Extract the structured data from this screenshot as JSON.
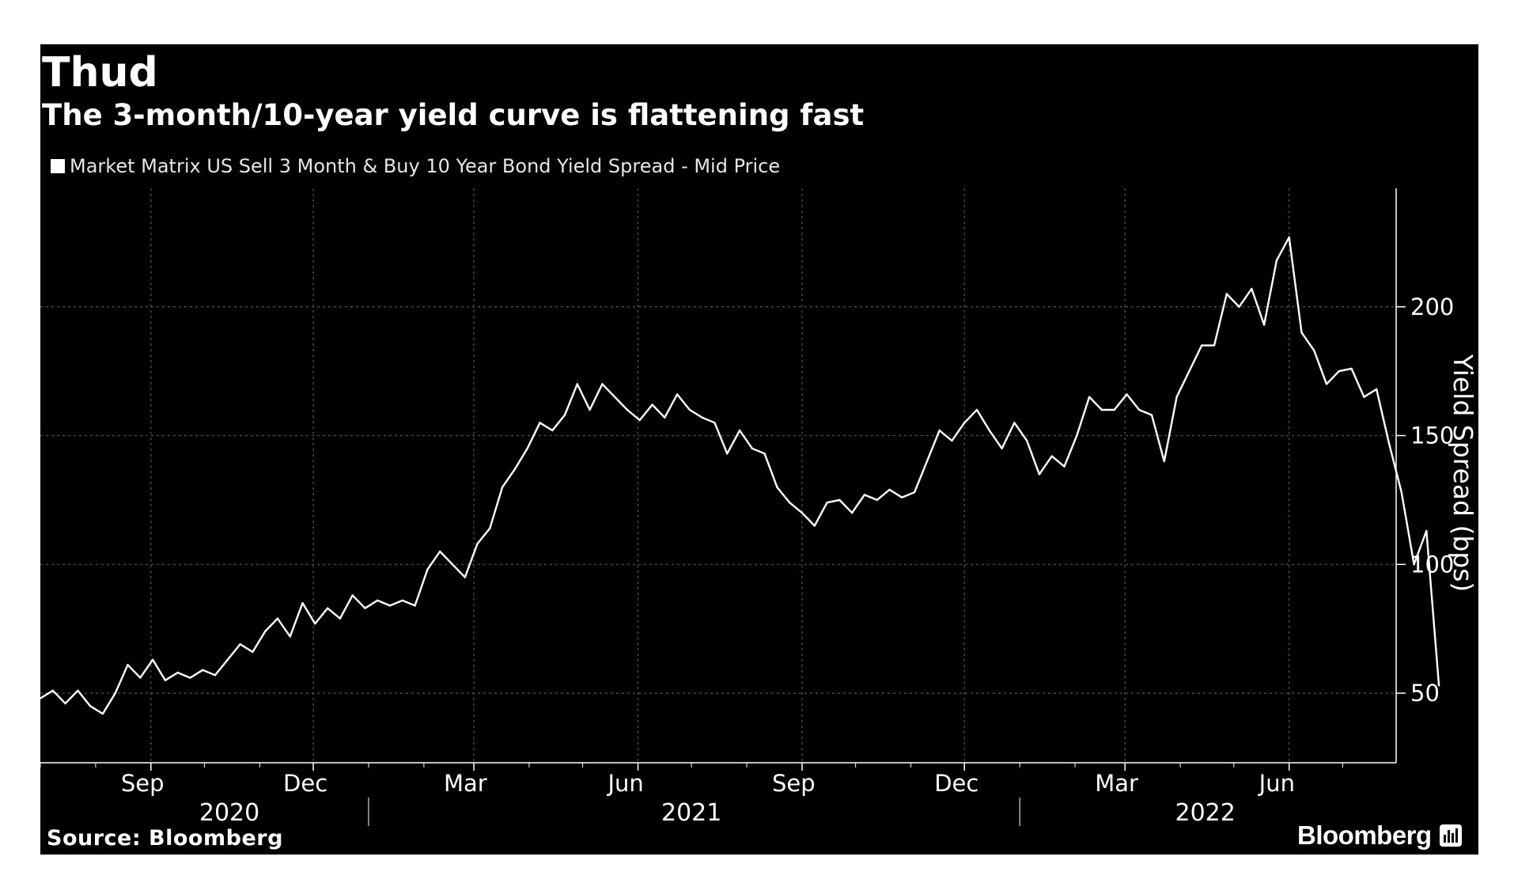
{
  "header": {
    "title": "Thud",
    "subtitle": "The 3-month/10-year yield curve is flattening fast"
  },
  "footer": {
    "source": "Source: Bloomberg",
    "brand": "Bloomberg"
  },
  "colors": {
    "background": "#000000",
    "line": "#ffffff",
    "grid": "#555555"
  },
  "chart_data": {
    "type": "line",
    "title": "Thud",
    "subtitle": "The 3-month/10-year yield curve is flattening fast",
    "legend": [
      "Market Matrix US Sell 3 Month & Buy 10 Year Bond Yield Spread - Mid Price"
    ],
    "ylabel": "Yield Spread (bps)",
    "xlabel": "",
    "ylim": [
      23,
      246
    ],
    "yticks": [
      50,
      100,
      150,
      200
    ],
    "grid": true,
    "x_range": [
      "2020-07-01",
      "2022-07-31"
    ],
    "x_ticks": [
      {
        "date": "2020-09-01",
        "label": "Sep"
      },
      {
        "date": "2020-12-01",
        "label": "Dec"
      },
      {
        "date": "2021-03-01",
        "label": "Mar"
      },
      {
        "date": "2021-06-01",
        "label": "Jun"
      },
      {
        "date": "2021-09-01",
        "label": "Sep"
      },
      {
        "date": "2021-12-01",
        "label": "Dec"
      },
      {
        "date": "2022-03-01",
        "label": "Mar"
      },
      {
        "date": "2022-06-01",
        "label": "Jun"
      }
    ],
    "years": [
      {
        "label": "2020",
        "center": "2020-10-15"
      },
      {
        "label": "2021",
        "center": "2021-07-01"
      },
      {
        "label": "2022",
        "center": "2022-04-15"
      }
    ],
    "year_dividers": [
      "2021-01-01",
      "2022-01-01"
    ],
    "series": [
      {
        "name": "Market Matrix US Sell 3 Month & Buy 10 Year Bond Yield Spread - Mid Price",
        "points": [
          [
            "2020-07-01",
            48
          ],
          [
            "2020-07-08",
            51
          ],
          [
            "2020-07-15",
            46
          ],
          [
            "2020-07-22",
            51
          ],
          [
            "2020-07-29",
            45
          ],
          [
            "2020-08-05",
            42
          ],
          [
            "2020-08-12",
            50
          ],
          [
            "2020-08-19",
            61
          ],
          [
            "2020-08-26",
            56
          ],
          [
            "2020-09-02",
            63
          ],
          [
            "2020-09-09",
            55
          ],
          [
            "2020-09-16",
            58
          ],
          [
            "2020-09-23",
            56
          ],
          [
            "2020-09-30",
            59
          ],
          [
            "2020-10-07",
            57
          ],
          [
            "2020-10-14",
            63
          ],
          [
            "2020-10-21",
            69
          ],
          [
            "2020-10-28",
            66
          ],
          [
            "2020-11-04",
            74
          ],
          [
            "2020-11-11",
            79
          ],
          [
            "2020-11-18",
            72
          ],
          [
            "2020-11-25",
            85
          ],
          [
            "2020-12-02",
            77
          ],
          [
            "2020-12-09",
            83
          ],
          [
            "2020-12-16",
            79
          ],
          [
            "2020-12-23",
            88
          ],
          [
            "2020-12-30",
            83
          ],
          [
            "2021-01-06",
            86
          ],
          [
            "2021-01-13",
            84
          ],
          [
            "2021-01-20",
            86
          ],
          [
            "2021-01-27",
            84
          ],
          [
            "2021-02-03",
            98
          ],
          [
            "2021-02-10",
            105
          ],
          [
            "2021-02-17",
            100
          ],
          [
            "2021-02-24",
            95
          ],
          [
            "2021-03-03",
            108
          ],
          [
            "2021-03-10",
            114
          ],
          [
            "2021-03-17",
            130
          ],
          [
            "2021-03-24",
            137
          ],
          [
            "2021-03-31",
            145
          ],
          [
            "2021-04-07",
            155
          ],
          [
            "2021-04-14",
            152
          ],
          [
            "2021-04-21",
            158
          ],
          [
            "2021-04-28",
            170
          ],
          [
            "2021-05-05",
            160
          ],
          [
            "2021-05-12",
            170
          ],
          [
            "2021-05-19",
            165
          ],
          [
            "2021-05-26",
            160
          ],
          [
            "2021-06-02",
            156
          ],
          [
            "2021-06-09",
            162
          ],
          [
            "2021-06-16",
            157
          ],
          [
            "2021-06-23",
            166
          ],
          [
            "2021-06-30",
            160
          ],
          [
            "2021-07-07",
            157
          ],
          [
            "2021-07-14",
            155
          ],
          [
            "2021-07-21",
            143
          ],
          [
            "2021-07-28",
            152
          ],
          [
            "2021-08-04",
            145
          ],
          [
            "2021-08-11",
            143
          ],
          [
            "2021-08-18",
            130
          ],
          [
            "2021-08-25",
            124
          ],
          [
            "2021-09-01",
            120
          ],
          [
            "2021-09-08",
            115
          ],
          [
            "2021-09-15",
            124
          ],
          [
            "2021-09-22",
            125
          ],
          [
            "2021-09-29",
            120
          ],
          [
            "2021-10-06",
            127
          ],
          [
            "2021-10-13",
            125
          ],
          [
            "2021-10-20",
            129
          ],
          [
            "2021-10-27",
            126
          ],
          [
            "2021-11-03",
            128
          ],
          [
            "2021-11-10",
            140
          ],
          [
            "2021-11-17",
            152
          ],
          [
            "2021-11-24",
            148
          ],
          [
            "2021-12-01",
            155
          ],
          [
            "2021-12-08",
            160
          ],
          [
            "2021-12-15",
            152
          ],
          [
            "2021-12-22",
            145
          ],
          [
            "2021-12-29",
            155
          ],
          [
            "2022-01-05",
            148
          ],
          [
            "2022-01-12",
            135
          ],
          [
            "2022-01-19",
            142
          ],
          [
            "2022-01-26",
            138
          ],
          [
            "2022-02-02",
            150
          ],
          [
            "2022-02-09",
            165
          ],
          [
            "2022-02-16",
            160
          ],
          [
            "2022-02-23",
            160
          ],
          [
            "2022-03-02",
            166
          ],
          [
            "2022-03-09",
            160
          ],
          [
            "2022-03-16",
            158
          ],
          [
            "2022-03-23",
            140
          ],
          [
            "2022-03-30",
            165
          ],
          [
            "2022-04-06",
            175
          ],
          [
            "2022-04-13",
            185
          ],
          [
            "2022-04-20",
            185
          ],
          [
            "2022-04-27",
            205
          ],
          [
            "2022-05-04",
            200
          ],
          [
            "2022-05-11",
            207
          ],
          [
            "2022-05-18",
            193
          ],
          [
            "2022-05-25",
            218
          ],
          [
            "2022-06-01",
            227
          ],
          [
            "2022-06-08",
            190
          ],
          [
            "2022-06-15",
            183
          ],
          [
            "2022-06-22",
            170
          ],
          [
            "2022-06-29",
            175
          ],
          [
            "2022-07-06",
            176
          ],
          [
            "2022-07-13",
            165
          ],
          [
            "2022-07-20",
            168
          ],
          [
            "2022-07-27",
            147
          ],
          [
            "2022-08-03",
            128
          ],
          [
            "2022-08-10",
            100
          ],
          [
            "2022-08-17",
            113
          ],
          [
            "2022-08-24",
            53
          ]
        ]
      }
    ]
  }
}
